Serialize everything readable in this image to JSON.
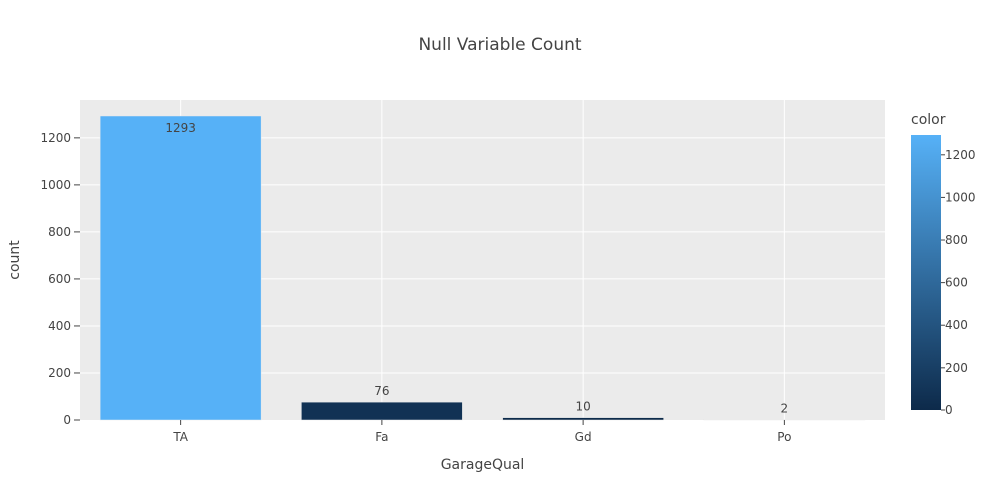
{
  "chart_data": {
    "type": "bar",
    "title": "Null Variable Count",
    "xlabel": "GarageQual",
    "ylabel": "count",
    "categories": [
      "TA",
      "Fa",
      "Gd",
      "Po"
    ],
    "values": [
      1293,
      76,
      10,
      2
    ],
    "data_labels": [
      "1293",
      "76",
      "10",
      "2"
    ],
    "ylim": [
      0,
      1361
    ],
    "y_ticks": [
      0,
      200,
      400,
      600,
      800,
      1000,
      1200
    ],
    "y_tick_labels": [
      "0",
      "200",
      "400",
      "600",
      "800",
      "1000",
      "1200"
    ],
    "grid": true,
    "colorbar": {
      "title": "color",
      "range": [
        2,
        1293
      ],
      "ticks": [
        0,
        200,
        400,
        600,
        800,
        1000,
        1200
      ],
      "tick_labels": [
        "0",
        "200",
        "400",
        "600",
        "800",
        "1000",
        "1200"
      ],
      "colorscale": [
        "#0d2a4a",
        "#56b1f7"
      ]
    },
    "colors": {
      "plot_bg": "#ebebeb",
      "grid": "#ffffff",
      "text": "#444444"
    }
  }
}
